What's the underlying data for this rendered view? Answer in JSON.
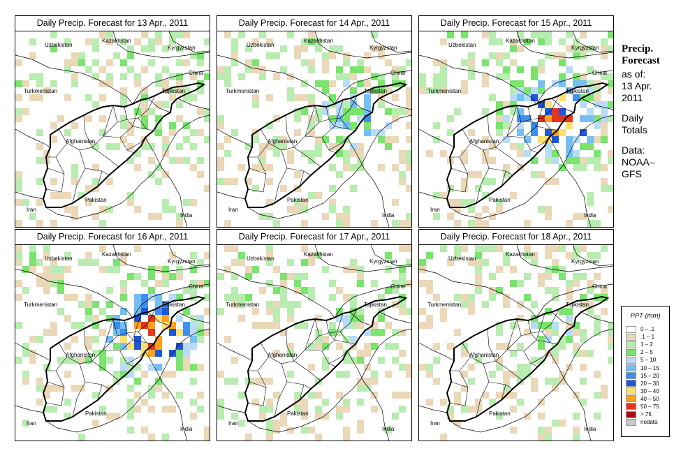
{
  "panels": [
    {
      "title": "Daily Precip. Forecast for  13 Apr., 2011",
      "seed": 11,
      "intensity": 0.6
    },
    {
      "title": "Daily Precip. Forecast for  14 Apr., 2011",
      "seed": 22,
      "intensity": 1.6
    },
    {
      "title": "Daily Precip. Forecast for  15 Apr., 2011",
      "seed": 33,
      "intensity": 3.4
    },
    {
      "title": "Daily Precip. Forecast for  16 Apr., 2011",
      "seed": 44,
      "intensity": 3.6
    },
    {
      "title": "Daily Precip. Forecast for  17 Apr., 2011",
      "seed": 55,
      "intensity": 1.0
    },
    {
      "title": "Daily Precip. Forecast for  18 Apr., 2011",
      "seed": 66,
      "intensity": 0.9
    }
  ],
  "map_labels": {
    "uzbekistan": "Uzbekistan",
    "kazakhstan": "Kazakhstan",
    "kyrgyzstan": "Kyrgyzstan",
    "china": "China",
    "turkmenistan": "Turkmenistan",
    "tajikistan": "Tajikistan",
    "afghanistan": "Afghanistan",
    "pakistan": "Pakistan",
    "iran": "Iran",
    "india": "India"
  },
  "sidebar": {
    "title_line1": "Precip.",
    "title_line2": "Forecast",
    "asof": "as of:",
    "date_line1": "13 Apr.",
    "date_line2": "2011",
    "daily_line1": "Daily",
    "daily_line2": "Totals",
    "data_line1": "Data:",
    "data_line2": "NOAA–",
    "data_line3": "GFS"
  },
  "legend": {
    "title": "PPT (mm)",
    "items": [
      {
        "label": "0 – .1",
        "color": "#ffffff"
      },
      {
        "label": ".1 – 1",
        "color": "#ead8b8"
      },
      {
        "label": "1 – 2",
        "color": "#b9ecb0"
      },
      {
        "label": "2 – 5",
        "color": "#7ae46e"
      },
      {
        "label": "5 – 10",
        "color": "#b8dcf8"
      },
      {
        "label": "10 – 15",
        "color": "#76bff2"
      },
      {
        "label": "15 – 20",
        "color": "#3f8ff0"
      },
      {
        "label": "20 – 30",
        "color": "#1f55d8"
      },
      {
        "label": "30 – 40",
        "color": "#fee070"
      },
      {
        "label": "40 – 50",
        "color": "#ffa21a"
      },
      {
        "label": "50 – 75",
        "color": "#e8341c"
      },
      {
        "label": "> 75",
        "color": "#a81010"
      },
      {
        "label": "nodata",
        "color": "#c8c8c8"
      }
    ]
  }
}
